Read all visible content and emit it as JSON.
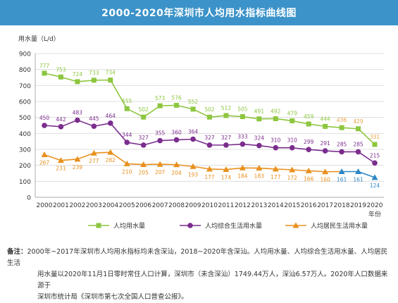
{
  "header": {
    "title": "2000-2020年深圳市人均用水指标曲线图"
  },
  "colors": {
    "title_bg": "#3b93c9",
    "per_capita": "#8dc63f",
    "integrated": "#7b2d8e",
    "residential": "#e8901c",
    "highlight": "#2b86c5",
    "grid": "#d9d9d9",
    "text": "#333333"
  },
  "chart_data": {
    "type": "line",
    "title": "2000-2020年深圳市人均用水指标曲线图",
    "ylabel": "用水量（L/d）",
    "xlabel": "年份",
    "ylim": [
      0,
      900
    ],
    "yticks": [
      0,
      100,
      200,
      300,
      400,
      500,
      600,
      700,
      800,
      900
    ],
    "categories": [
      "2000",
      "2001",
      "2002",
      "2003",
      "2004",
      "2005",
      "2006",
      "2007",
      "2008",
      "2009",
      "2010",
      "2011",
      "2012",
      "2013",
      "2014",
      "2015",
      "2016",
      "2017",
      "2018",
      "2019",
      "2020"
    ],
    "grid": true,
    "legend_position": "bottom",
    "series": [
      {
        "name": "人均用水量",
        "marker": "square",
        "color": "#8dc63f",
        "values": [
          777,
          753,
          724,
          733,
          734,
          555,
          502,
          573,
          576,
          552,
          502,
          512,
          505,
          491,
          492,
          479,
          459,
          444,
          436,
          429,
          331
        ]
      },
      {
        "name": "人均综合生活用水量",
        "marker": "circle",
        "color": "#7b2d8e",
        "values": [
          450,
          442,
          483,
          445,
          464,
          344,
          327,
          355,
          360,
          364,
          327,
          327,
          333,
          324,
          310,
          310,
          299,
          291,
          285,
          285,
          215
        ]
      },
      {
        "name": "人均居民生活用水量",
        "marker": "triangle",
        "color": "#e8901c",
        "values": [
          267,
          231,
          239,
          277,
          282,
          210,
          205,
          207,
          204,
          193,
          177,
          174,
          184,
          183,
          177,
          172,
          166,
          160,
          161,
          161,
          124
        ]
      }
    ],
    "notes": "2018–2020 values of the residential series are drawn in blue"
  },
  "note": {
    "label": "备注：",
    "line1": "2000年~2017年深圳市人均用水指标均未含深汕，2018~2020年含深汕。人均用水量、人均综合生活用水量、人均居民生活",
    "line2": "用水量以2020年11月1日零时常住人口计算，深圳市（未含深汕）1749.44万人，深汕6.57万人。2020年人口数据来源于",
    "line3": "深圳市统计局《深圳市第七次全国人口普查公报》。"
  }
}
